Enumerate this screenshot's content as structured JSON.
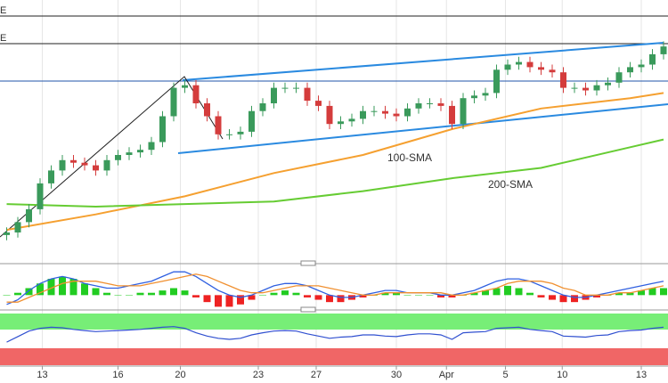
{
  "chart_data": [
    {
      "type": "candlestick",
      "corner_labels": [
        "E",
        "E"
      ],
      "xlim": [
        -0.6,
        59.4
      ],
      "ylim": [
        0,
        100
      ],
      "xticks": [
        {
          "value": 3.2,
          "label": "13"
        },
        {
          "value": 10,
          "label": "16"
        },
        {
          "value": 15.6,
          "label": "20"
        },
        {
          "value": 22.6,
          "label": "23"
        },
        {
          "value": 27.8,
          "label": "27"
        },
        {
          "value": 35,
          "label": "30"
        },
        {
          "value": 39.5,
          "label": "Apr"
        },
        {
          "value": 44.8,
          "label": "5"
        },
        {
          "value": 49.9,
          "label": "10"
        },
        {
          "value": 57,
          "label": "13"
        }
      ],
      "up_color": "#3a9a5b",
      "down_color": "#d43c3c",
      "open": [
        9,
        10,
        14,
        19,
        29,
        34,
        38,
        37,
        36,
        34,
        38,
        40,
        41,
        42,
        45,
        55,
        66,
        67,
        60,
        55,
        48,
        48,
        49,
        57,
        60,
        66,
        66,
        66,
        61,
        59,
        52,
        53,
        54,
        57,
        57,
        56,
        55,
        58,
        60,
        60,
        59,
        52,
        62,
        63,
        64,
        73,
        75,
        76,
        74,
        73,
        72,
        66,
        66,
        65,
        67,
        68,
        72,
        74,
        75,
        79
      ],
      "high": [
        12,
        16,
        21,
        31,
        36,
        40,
        40,
        39,
        38,
        40,
        42,
        43,
        44,
        47,
        57,
        68,
        69,
        69,
        62,
        57,
        50,
        51,
        59,
        62,
        68,
        68,
        68,
        68,
        63,
        61,
        55,
        56,
        59,
        59,
        59,
        58,
        60,
        62,
        62,
        62,
        61,
        64,
        65,
        66,
        75,
        77,
        78,
        78,
        76,
        75,
        74,
        68,
        68,
        69,
        70,
        74,
        76,
        77,
        81,
        84
      ],
      "low": [
        7,
        8,
        12,
        17,
        27,
        32,
        35,
        34,
        32,
        32,
        36,
        38,
        39,
        40,
        43,
        53,
        64,
        58,
        53,
        46,
        46,
        46,
        47,
        55,
        58,
        64,
        64,
        59,
        57,
        50,
        50,
        51,
        52,
        55,
        54,
        53,
        53,
        56,
        58,
        57,
        50,
        50,
        60,
        61,
        62,
        71,
        73,
        72,
        71,
        70,
        64,
        64,
        63,
        63,
        65,
        66,
        70,
        72,
        73,
        77
      ],
      "close": [
        10,
        14,
        19,
        29,
        34,
        38,
        37,
        36,
        34,
        38,
        40,
        41,
        42,
        45,
        55,
        66,
        67,
        60,
        55,
        48,
        48,
        49,
        57,
        60,
        66,
        66,
        66,
        61,
        59,
        52,
        53,
        54,
        57,
        57,
        56,
        55,
        58,
        60,
        60,
        59,
        52,
        62,
        63,
        64,
        73,
        75,
        76,
        74,
        73,
        72,
        66,
        66,
        65,
        67,
        68,
        72,
        74,
        75,
        79,
        82
      ],
      "series": [
        {
          "name": "100-SMA",
          "color": "#f5a030",
          "x": [
            0,
            8,
            16,
            24,
            32,
            40,
            48,
            56,
            59
          ],
          "values": [
            11,
            17,
            24,
            33,
            40,
            50,
            58,
            62,
            64
          ]
        },
        {
          "name": "200-SMA",
          "color": "#66cc33",
          "x": [
            0,
            8,
            16,
            24,
            32,
            40,
            48,
            56,
            59
          ],
          "values": [
            21,
            20,
            21,
            22,
            26,
            31,
            35,
            43,
            46
          ]
        }
      ]
    },
    {
      "type": "macd",
      "ylim": [
        -6,
        12
      ],
      "up_color": "#22cc22",
      "down_color": "#ee2222",
      "values": [
        0,
        1,
        3,
        5,
        7,
        8,
        7,
        5,
        3,
        1,
        0,
        0,
        1,
        1,
        2,
        3,
        2,
        -1,
        -3,
        -5,
        -5,
        -4,
        -2,
        0,
        1,
        2,
        1,
        -1,
        -2,
        -3,
        -3,
        -2,
        -1,
        0,
        1,
        1,
        0,
        0,
        0,
        -1,
        -1,
        0,
        1,
        2,
        3,
        4,
        3,
        1,
        -1,
        -2,
        -3,
        -3,
        -2,
        -1,
        0,
        1,
        1,
        2,
        3,
        3
      ],
      "series": [
        {
          "color": "#3060e0",
          "values": [
            -4,
            -2,
            2,
            5,
            7,
            8,
            7,
            5,
            4,
            3,
            3,
            4,
            5,
            6,
            8,
            10,
            10,
            8,
            5,
            2,
            0,
            -1,
            0,
            2,
            4,
            5,
            5,
            4,
            2,
            0,
            -1,
            -1,
            0,
            1,
            2,
            2,
            1,
            1,
            1,
            0,
            0,
            1,
            2,
            4,
            6,
            7,
            7,
            6,
            4,
            2,
            0,
            -1,
            -1,
            0,
            1,
            2,
            3,
            4,
            5,
            6
          ]
        },
        {
          "color": "#f09030",
          "values": [
            -3,
            -3,
            -1,
            1,
            3,
            5,
            6,
            6,
            6,
            5,
            4,
            4,
            4,
            5,
            6,
            7,
            8,
            9,
            8,
            6,
            4,
            2,
            1,
            1,
            2,
            3,
            4,
            4,
            4,
            3,
            2,
            1,
            0,
            0,
            1,
            1,
            1,
            1,
            1,
            1,
            0,
            0,
            1,
            2,
            3,
            5,
            6,
            6,
            6,
            5,
            3,
            2,
            0,
            0,
            0,
            1,
            1,
            2,
            3,
            4
          ]
        }
      ]
    },
    {
      "type": "line",
      "ylim": [
        0,
        100
      ],
      "color": "#3050d0",
      "values": [
        45,
        55,
        65,
        70,
        72,
        71,
        68,
        66,
        64,
        65,
        66,
        67,
        68,
        70,
        72,
        73,
        70,
        62,
        56,
        52,
        50,
        52,
        58,
        62,
        65,
        66,
        65,
        60,
        56,
        52,
        54,
        55,
        58,
        58,
        56,
        55,
        58,
        60,
        60,
        58,
        50,
        62,
        63,
        64,
        70,
        71,
        72,
        68,
        66,
        64,
        56,
        55,
        54,
        57,
        58,
        64,
        66,
        67,
        70,
        72
      ]
    }
  ]
}
